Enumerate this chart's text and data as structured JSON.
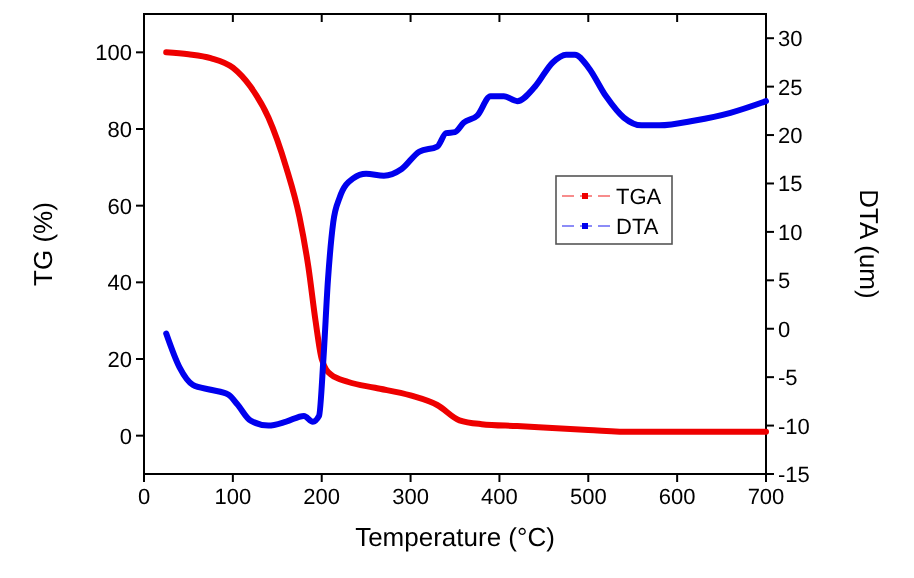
{
  "chart_data": {
    "type": "line",
    "xlabel": "Temperature (°C)",
    "ylabel": "TG (%)",
    "y2label": "DTA (um)",
    "xlim": [
      0,
      700
    ],
    "xticks": [
      0,
      100,
      200,
      300,
      400,
      500,
      600,
      700
    ],
    "ylim": [
      -10,
      110
    ],
    "yticks": [
      0,
      20,
      40,
      60,
      80,
      100
    ],
    "y2lim": [
      -15,
      32.5
    ],
    "y2ticks": [
      -15,
      -10,
      -5,
      0,
      5,
      10,
      15,
      20,
      25,
      30
    ],
    "legend": "right",
    "grid": false,
    "line_style": "solid",
    "series": [
      {
        "name": "TGA",
        "color": "#ee0000",
        "x": [
          25,
          50,
          75,
          100,
          120,
          140,
          160,
          175,
          185,
          193,
          200,
          210,
          230,
          260,
          300,
          330,
          355,
          380,
          420,
          500,
          550,
          700
        ],
        "values": [
          100,
          99.5,
          98.5,
          96,
          91,
          83,
          70,
          57,
          44,
          30,
          20,
          16,
          14,
          12.5,
          10.5,
          8,
          4,
          3,
          2.5,
          1.5,
          1,
          1
        ]
      },
      {
        "name": "DTA",
        "color": "#0000ee",
        "axis": "y2",
        "x": [
          25,
          40,
          55,
          75,
          95,
          105,
          120,
          140,
          160,
          180,
          190,
          197,
          202,
          207,
          213,
          220,
          235,
          250,
          270,
          290,
          310,
          330,
          340,
          350,
          360,
          375,
          390,
          405,
          420,
          440,
          460,
          475,
          485,
          500,
          520,
          540,
          560,
          580,
          620,
          660,
          700
        ],
        "values": [
          -0.5,
          -4,
          -5.8,
          -6.3,
          -6.8,
          -7.8,
          -9.5,
          -10,
          -9.6,
          -9,
          -9.6,
          -9,
          -3,
          5,
          11,
          13.5,
          15.5,
          16,
          15.8,
          16.5,
          18.3,
          18.8,
          20.2,
          20.3,
          21.3,
          22,
          24,
          24,
          23.5,
          25,
          27.5,
          28.3,
          28.3,
          27,
          24,
          21.8,
          21,
          21,
          21.5,
          22.3,
          23.5
        ]
      }
    ]
  }
}
